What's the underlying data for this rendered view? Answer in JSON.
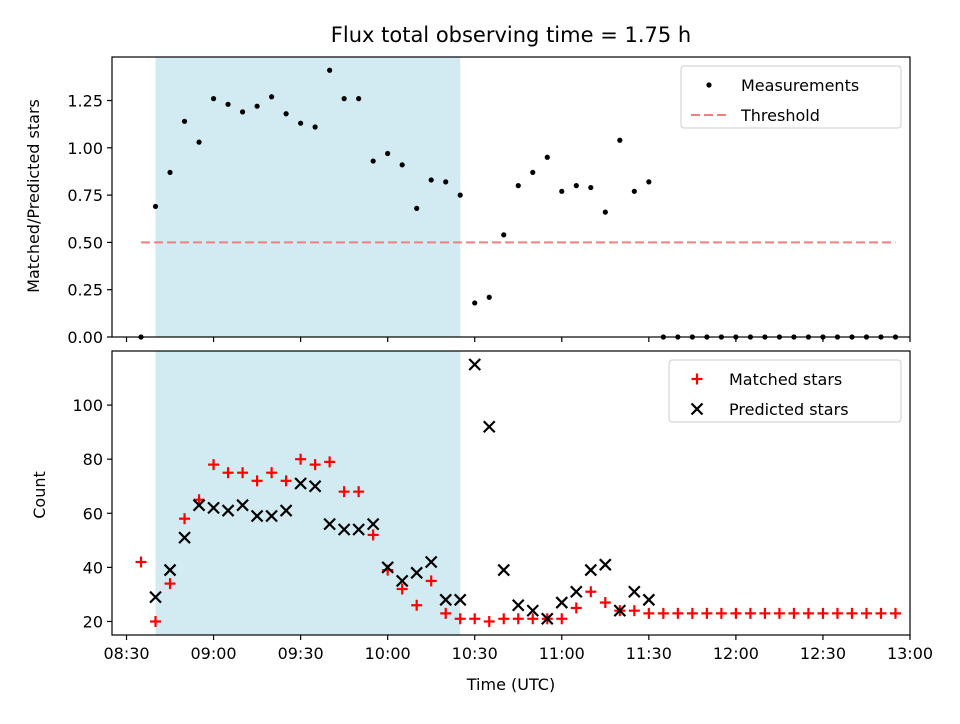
{
  "chart_data": [
    {
      "type": "scatter",
      "title": "Flux total observing time = 1.75 h",
      "ylabel": "Matched/Predicted stars",
      "ylim": [
        0,
        1.48
      ],
      "yticks": [
        0,
        0.25,
        0.5,
        0.75,
        1.0,
        1.25
      ],
      "ytick_labels": [
        "0.00",
        "0.25",
        "0.50",
        "0.75",
        "1.00",
        "1.25"
      ],
      "highlight_span": [
        "08:40",
        "10:25"
      ],
      "highlight_color": "#add8e6",
      "legend": "top-right",
      "series": [
        {
          "name": "Measurements",
          "kind": "dot",
          "color": "#000000",
          "x": [
            "08:35",
            "08:40",
            "08:45",
            "08:50",
            "08:55",
            "09:00",
            "09:05",
            "09:10",
            "09:15",
            "09:20",
            "09:25",
            "09:30",
            "09:35",
            "09:40",
            "09:45",
            "09:50",
            "09:55",
            "10:00",
            "10:05",
            "10:10",
            "10:15",
            "10:20",
            "10:25",
            "10:30",
            "10:35",
            "10:40",
            "10:45",
            "10:50",
            "10:55",
            "11:00",
            "11:05",
            "11:10",
            "11:15",
            "11:20",
            "11:25",
            "11:30",
            "11:35",
            "11:40",
            "11:45",
            "11:50",
            "11:55",
            "12:00",
            "12:05",
            "12:10",
            "12:15",
            "12:20",
            "12:25",
            "12:30",
            "12:35",
            "12:40",
            "12:45",
            "12:50",
            "12:55"
          ],
          "y": [
            0.0,
            0.69,
            0.87,
            1.14,
            1.03,
            1.26,
            1.23,
            1.19,
            1.22,
            1.27,
            1.18,
            1.13,
            1.11,
            1.41,
            1.26,
            1.26,
            0.93,
            0.97,
            0.91,
            0.68,
            0.83,
            0.82,
            0.75,
            0.18,
            0.21,
            0.54,
            0.8,
            0.87,
            0.95,
            0.77,
            0.8,
            0.79,
            0.66,
            1.04,
            0.77,
            0.82,
            0,
            0,
            0,
            0,
            0,
            0,
            0,
            0,
            0,
            0,
            0,
            0,
            0,
            0,
            0,
            0,
            0
          ]
        },
        {
          "name": "Threshold",
          "kind": "dashed-line",
          "color": "#f08080",
          "x": [
            "08:35",
            "12:55"
          ],
          "y": [
            0.5,
            0.5
          ]
        }
      ]
    },
    {
      "type": "scatter",
      "xlabel": "Time (UTC)",
      "ylabel": "Count",
      "ylim": [
        15,
        120
      ],
      "yticks": [
        20,
        40,
        60,
        80,
        100
      ],
      "xlim": [
        "08:25",
        "13:00"
      ],
      "xticks": [
        "08:30",
        "09:00",
        "09:30",
        "10:00",
        "10:30",
        "11:00",
        "11:30",
        "12:00",
        "12:30",
        "13:00"
      ],
      "highlight_span": [
        "08:40",
        "10:25"
      ],
      "highlight_color": "#add8e6",
      "legend": "top-right",
      "series": [
        {
          "name": "Matched stars",
          "kind": "plus",
          "color": "#ff0000",
          "x": [
            "08:35",
            "08:40",
            "08:45",
            "08:50",
            "08:55",
            "09:00",
            "09:05",
            "09:10",
            "09:15",
            "09:20",
            "09:25",
            "09:30",
            "09:35",
            "09:40",
            "09:45",
            "09:50",
            "09:55",
            "10:00",
            "10:05",
            "10:10",
            "10:15",
            "10:20",
            "10:25",
            "10:30",
            "10:35",
            "10:40",
            "10:45",
            "10:50",
            "10:55",
            "11:00",
            "11:05",
            "11:10",
            "11:15",
            "11:20",
            "11:25",
            "11:30",
            "11:35",
            "11:40",
            "11:45",
            "11:50",
            "11:55",
            "12:00",
            "12:05",
            "12:10",
            "12:15",
            "12:20",
            "12:25",
            "12:30",
            "12:35",
            "12:40",
            "12:45",
            "12:50",
            "12:55"
          ],
          "y": [
            42,
            20,
            34,
            58,
            65,
            78,
            75,
            75,
            72,
            75,
            72,
            80,
            78,
            79,
            68,
            68,
            52,
            39,
            32,
            26,
            35,
            23,
            21,
            21,
            20,
            21,
            21,
            21,
            21,
            21,
            25,
            31,
            27,
            24,
            24,
            23,
            23,
            23,
            23,
            23,
            23,
            23,
            23,
            23,
            23,
            23,
            23,
            23,
            23,
            23,
            23,
            23,
            23
          ]
        },
        {
          "name": "Predicted stars",
          "kind": "x",
          "color": "#000000",
          "x": [
            "08:40",
            "08:45",
            "08:50",
            "08:55",
            "09:00",
            "09:05",
            "09:10",
            "09:15",
            "09:20",
            "09:25",
            "09:30",
            "09:35",
            "09:40",
            "09:45",
            "09:50",
            "09:55",
            "10:00",
            "10:05",
            "10:10",
            "10:15",
            "10:20",
            "10:25",
            "10:30",
            "10:35",
            "10:40",
            "10:45",
            "10:50",
            "10:55",
            "11:00",
            "11:05",
            "11:10",
            "11:15",
            "11:20",
            "11:25",
            "11:30"
          ],
          "y": [
            29,
            39,
            51,
            63,
            62,
            61,
            63,
            59,
            59,
            61,
            71,
            70,
            56,
            54,
            54,
            56,
            40,
            35,
            38,
            42,
            28,
            28,
            115,
            92,
            39,
            26,
            24,
            21,
            27,
            31,
            39,
            41,
            24,
            31,
            28
          ]
        }
      ]
    }
  ]
}
